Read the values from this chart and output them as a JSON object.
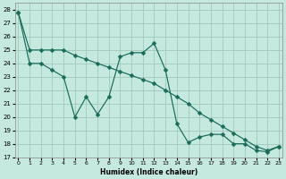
{
  "xlabel": "Humidex (Indice chaleur)",
  "xlim": [
    -0.3,
    23.3
  ],
  "ylim": [
    17,
    28.5
  ],
  "yticks": [
    17,
    18,
    19,
    20,
    21,
    22,
    23,
    24,
    25,
    26,
    27,
    28
  ],
  "xticks": [
    0,
    1,
    2,
    3,
    4,
    5,
    6,
    7,
    8,
    9,
    10,
    11,
    12,
    13,
    14,
    15,
    16,
    17,
    18,
    19,
    20,
    21,
    22,
    23
  ],
  "bg_color": "#c5e8df",
  "grid_color": "#a0c8bc",
  "line_color": "#1a6b5a",
  "series1_x": [
    0,
    1,
    2,
    3,
    4,
    5,
    6,
    7,
    8,
    9,
    10,
    11,
    12,
    13,
    14,
    15,
    16,
    17,
    18,
    19,
    20,
    21,
    22,
    23
  ],
  "series1_y": [
    27.8,
    25.0,
    25.0,
    25.0,
    25.0,
    24.6,
    24.3,
    24.0,
    23.7,
    23.4,
    23.1,
    22.8,
    22.5,
    22.0,
    21.5,
    21.0,
    20.3,
    19.8,
    19.3,
    18.8,
    18.3,
    17.8,
    17.5,
    17.8
  ],
  "series2_x": [
    0,
    1,
    2,
    3,
    4,
    5,
    6,
    7,
    8,
    9,
    10,
    11,
    12,
    13,
    14,
    15,
    16,
    17,
    18,
    19,
    20,
    21,
    22,
    23
  ],
  "series2_y": [
    27.8,
    24.0,
    24.0,
    23.5,
    23.0,
    20.0,
    21.5,
    20.2,
    21.5,
    24.5,
    24.8,
    24.8,
    25.5,
    23.5,
    19.5,
    18.1,
    18.5,
    18.7,
    18.7,
    18.0,
    18.0,
    17.5,
    17.4,
    17.8
  ],
  "marker": "D",
  "marker_size": 2.5
}
